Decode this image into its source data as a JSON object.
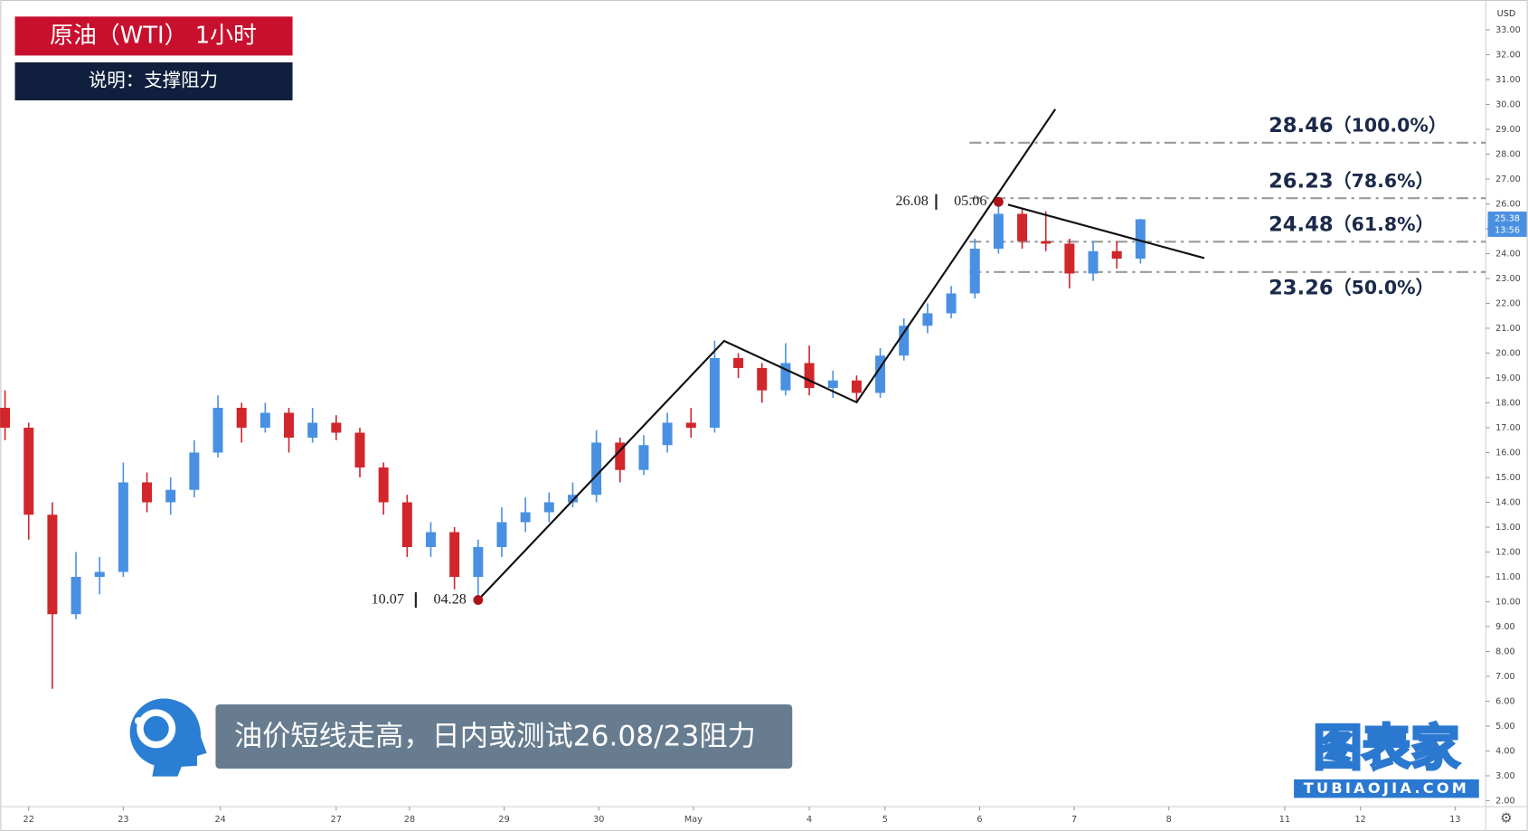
{
  "chart_data": {
    "type": "candlestick",
    "title": "原油（WTI） 1小时",
    "subtitle": "说明：支撑阻力",
    "caption": "油价短线走高，日内或测试26.08/23阻力",
    "brand": "图表家",
    "brand_url": "TUBIAOJIA.COM",
    "currency": "USD",
    "countdown": "13:56",
    "up_color": "#4a90e2",
    "down_color": "#d0262c",
    "open": [
      17.8,
      17,
      13.5,
      9.5,
      11,
      11.2,
      14.8,
      14,
      14.5,
      16,
      17.8,
      17,
      17.6,
      16.6,
      17.2,
      16.8,
      15.4,
      14,
      12.2,
      12.8,
      11,
      12.2,
      13.2,
      13.6,
      14,
      14.3,
      16.4,
      15.3,
      16.3,
      17.2,
      17,
      19.8,
      19.4,
      18.5,
      19.6,
      18.6,
      18.9,
      18.4,
      19.9,
      21.1,
      21.6,
      22.4,
      24.2,
      25.6,
      24.5,
      24.4,
      23.2,
      24.1,
      23.8
    ],
    "high": [
      18.5,
      17.2,
      14,
      12,
      11.8,
      15.6,
      15.2,
      15,
      16.5,
      18.3,
      18,
      18,
      17.8,
      17.8,
      17.5,
      17,
      15.6,
      14.3,
      13.2,
      13,
      12.5,
      13.8,
      14.2,
      14.4,
      14.8,
      16.9,
      16.6,
      16.7,
      17.6,
      17.8,
      20.5,
      20,
      19.6,
      20.4,
      20.3,
      19.3,
      19.1,
      20.2,
      21.4,
      22,
      22.7,
      24.6,
      26.08,
      25.8,
      25.7,
      24.6,
      24.5,
      24.5,
      25.4
    ],
    "low": [
      16.5,
      12.5,
      6.5,
      9.3,
      10.3,
      11,
      13.6,
      13.5,
      14.2,
      15.8,
      16.4,
      16.8,
      16,
      16.4,
      16.5,
      15,
      13.5,
      11.8,
      11.8,
      10.5,
      10.07,
      11.8,
      12.8,
      13.2,
      13.8,
      14,
      14.8,
      15.1,
      16,
      16.6,
      16.8,
      19,
      18,
      18.3,
      18.3,
      18.2,
      18,
      18.2,
      19.7,
      20.8,
      21.4,
      22.2,
      24,
      24.2,
      24.1,
      22.6,
      22.9,
      23.4,
      23.6
    ],
    "close": [
      17,
      13.5,
      9.5,
      11,
      11.2,
      14.8,
      14,
      14.5,
      16,
      17.8,
      17,
      17.6,
      16.6,
      17.2,
      16.8,
      15.4,
      14,
      12.2,
      12.8,
      11,
      12.2,
      13.2,
      13.6,
      14,
      14.3,
      16.4,
      15.3,
      16.3,
      17.2,
      17,
      19.8,
      19.4,
      18.5,
      19.6,
      18.6,
      18.9,
      18.4,
      19.9,
      21.1,
      21.6,
      22.4,
      24.2,
      25.6,
      24.5,
      24.4,
      23.2,
      24.1,
      23.8,
      25.38
    ],
    "marker_dates": [
      "04.28",
      "05.06"
    ],
    "xlim": [
      -0.2,
      62.6
    ],
    "xticks": [
      {
        "value": 1.0,
        "label": "22"
      },
      {
        "value": 5.0,
        "label": "23"
      },
      {
        "value": 9.1,
        "label": "24"
      },
      {
        "value": 14.0,
        "label": "27"
      },
      {
        "value": 17.1,
        "label": "28"
      },
      {
        "value": 21.1,
        "label": "29"
      },
      {
        "value": 25.1,
        "label": "30"
      },
      {
        "value": 29.1,
        "label": "May"
      },
      {
        "value": 34.0,
        "label": "4"
      },
      {
        "value": 37.2,
        "label": "5"
      },
      {
        "value": 41.2,
        "label": "6"
      },
      {
        "value": 45.2,
        "label": "7"
      },
      {
        "value": 49.2,
        "label": "8"
      },
      {
        "value": 54.1,
        "label": "11"
      },
      {
        "value": 57.3,
        "label": "12"
      },
      {
        "value": 61.3,
        "label": "13"
      }
    ],
    "ylim": [
      1.76,
      34.2
    ],
    "yticks": [
      {
        "value": 2,
        "label": "2.00"
      },
      {
        "value": 3,
        "label": "3.00"
      },
      {
        "value": 4,
        "label": "4.00"
      },
      {
        "value": 5,
        "label": "5.00"
      },
      {
        "value": 6,
        "label": "6.00"
      },
      {
        "value": 7,
        "label": "7.00"
      },
      {
        "value": 8,
        "label": "8.00"
      },
      {
        "value": 9,
        "label": "9.00"
      },
      {
        "value": 10,
        "label": "10.00"
      },
      {
        "value": 11,
        "label": "11.00"
      },
      {
        "value": 12,
        "label": "12.00"
      },
      {
        "value": 13,
        "label": "13.00"
      },
      {
        "value": 14,
        "label": "14.00"
      },
      {
        "value": 15,
        "label": "15.00"
      },
      {
        "value": 16,
        "label": "16.00"
      },
      {
        "value": 17,
        "label": "17.00"
      },
      {
        "value": 18,
        "label": "18.00"
      },
      {
        "value": 19,
        "label": "19.00"
      },
      {
        "value": 20,
        "label": "20.00"
      },
      {
        "value": 21,
        "label": "21.00"
      },
      {
        "value": 22,
        "label": "22.00"
      },
      {
        "value": 23,
        "label": "23.00"
      },
      {
        "value": 24,
        "label": "24.00"
      },
      {
        "value": 25,
        "label": "25.00"
      },
      {
        "value": 26,
        "label": "26.00"
      },
      {
        "value": 27,
        "label": "27.00"
      },
      {
        "value": 28,
        "label": "28.00"
      },
      {
        "value": 29,
        "label": "29.00"
      },
      {
        "value": 30,
        "label": "30.00"
      },
      {
        "value": 31,
        "label": "31.00"
      },
      {
        "value": 32,
        "label": "32.00"
      },
      {
        "value": 33,
        "label": "33.00"
      }
    ],
    "levels": [
      {
        "value": 28.46,
        "percent": "（100.0%）"
      },
      {
        "value": 26.23,
        "percent": "（78.6%）"
      },
      {
        "value": 24.48,
        "percent": "（61.8%）"
      },
      {
        "value": 23.26,
        "percent": "（50.0%）"
      }
    ],
    "trend_lines": [
      {
        "x": [
          20,
          30.4,
          36.0,
          44.4
        ],
        "y": [
          10.07,
          20.49,
          18.02,
          29.81
        ]
      },
      {
        "x": [
          42.4,
          50.7
        ],
        "y": [
          25.97,
          23.82
        ]
      }
    ]
  }
}
